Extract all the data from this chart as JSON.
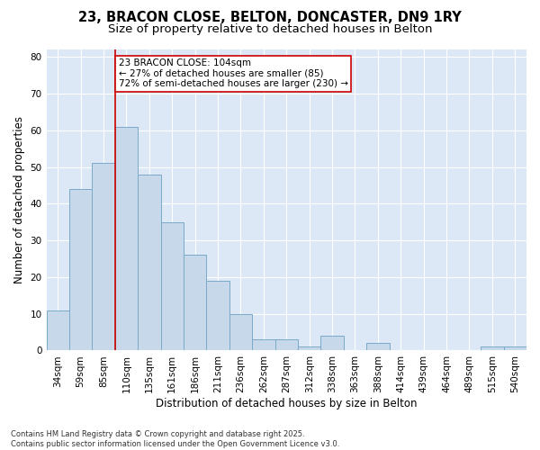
{
  "title_line1": "23, BRACON CLOSE, BELTON, DONCASTER, DN9 1RY",
  "title_line2": "Size of property relative to detached houses in Belton",
  "xlabel": "Distribution of detached houses by size in Belton",
  "ylabel": "Number of detached properties",
  "footnote": "Contains HM Land Registry data © Crown copyright and database right 2025.\nContains public sector information licensed under the Open Government Licence v3.0.",
  "bar_labels": [
    "34sqm",
    "59sqm",
    "85sqm",
    "110sqm",
    "135sqm",
    "161sqm",
    "186sqm",
    "211sqm",
    "236sqm",
    "262sqm",
    "287sqm",
    "312sqm",
    "338sqm",
    "363sqm",
    "388sqm",
    "414sqm",
    "439sqm",
    "464sqm",
    "489sqm",
    "515sqm",
    "540sqm"
  ],
  "bar_values": [
    11,
    44,
    51,
    61,
    48,
    35,
    26,
    19,
    10,
    3,
    3,
    1,
    4,
    0,
    2,
    0,
    0,
    0,
    0,
    1,
    1
  ],
  "bar_color": "#c8d8eb",
  "bar_edge_color": "#7aaac8",
  "vline_index": 3,
  "vline_color": "#cc0000",
  "annotation_line1": "23 BRACON CLOSE: 104sqm",
  "annotation_line2": "← 27% of detached houses are smaller (85)",
  "annotation_line3": "72% of semi-detached houses are larger (230) →",
  "annotation_box_color": "white",
  "annotation_box_edge": "#cc0000",
  "ylim_max": 82,
  "yticks": [
    0,
    10,
    20,
    30,
    40,
    50,
    60,
    70,
    80
  ],
  "plot_bg_color": "#dce8f5",
  "fig_bg_color": "#ffffff",
  "grid_color": "#ffffff",
  "title_fontsize": 10.5,
  "subtitle_fontsize": 9.5,
  "axis_label_fontsize": 8.5,
  "tick_fontsize": 7.5,
  "annotation_fontsize": 7.5,
  "footnote_fontsize": 6.0
}
